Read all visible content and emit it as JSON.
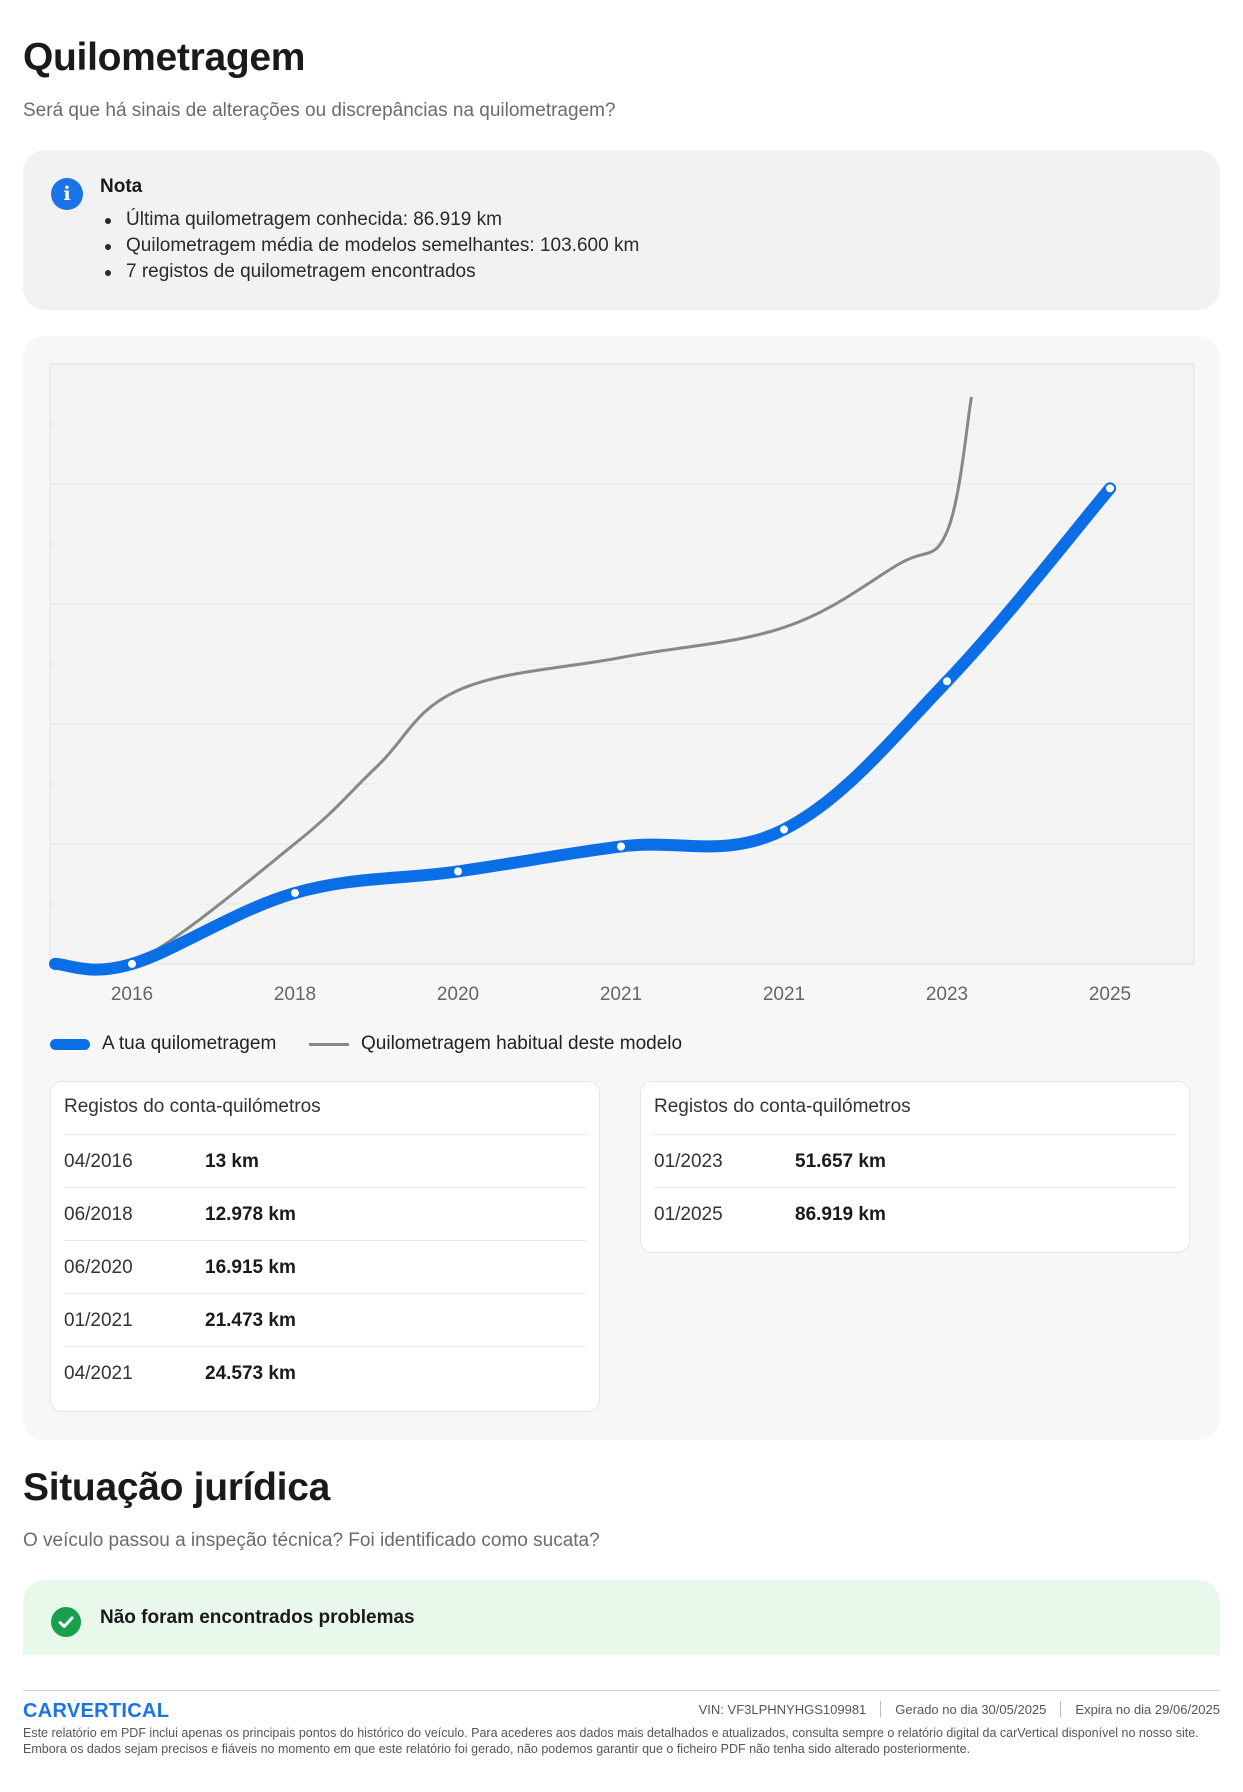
{
  "mileage_section": {
    "title": "Quilometragem",
    "subtitle": "Será que há sinais de alterações ou discrepâncias na quilometragem?"
  },
  "note": {
    "title": "Nota",
    "items": [
      "Última quilometragem conhecida: 86.919 km",
      "Quilometragem média de modelos semelhantes: 103.600 km",
      "7 registos de quilometragem encontrados"
    ]
  },
  "chart_data": {
    "type": "line",
    "title": "",
    "xlabel": "",
    "ylabel": "",
    "categories": [
      "2016",
      "2018",
      "2020",
      "2021",
      "2021",
      "2023",
      "2025"
    ],
    "ylim": [
      0,
      110000
    ],
    "y_gridlines": 10,
    "y_tick_labels_shown": false,
    "series": [
      {
        "name": "A tua quilometragem",
        "color": "#0a6ee6",
        "markers": true,
        "values": [
          13,
          12978,
          16915,
          21473,
          24573,
          51657,
          86919
        ]
      },
      {
        "name": "Quilometragem habitual deste modelo",
        "color": "#888888",
        "markers": false,
        "x": [
          -0.5,
          0,
          1,
          1.5,
          2,
          3,
          4,
          4.7,
          5,
          5.15
        ],
        "values": [
          0,
          0,
          22000,
          36000,
          50000,
          56000,
          61500,
          73000,
          79000,
          103600
        ]
      }
    ]
  },
  "odometer_tables": [
    {
      "title": "Registos do conta-quilómetros",
      "rows": [
        {
          "date": "04/2016",
          "km": "13 km"
        },
        {
          "date": "06/2018",
          "km": "12.978 km"
        },
        {
          "date": "06/2020",
          "km": "16.915 km"
        },
        {
          "date": "01/2021",
          "km": "21.473 km"
        },
        {
          "date": "04/2021",
          "km": "24.573 km"
        }
      ]
    },
    {
      "title": "Registos do conta-quilómetros",
      "rows": [
        {
          "date": "01/2023",
          "km": "51.657 km"
        },
        {
          "date": "01/2025",
          "km": "86.919 km"
        }
      ]
    }
  ],
  "legal_section": {
    "title": "Situação jurídica",
    "subtitle": "O veículo passou a inspeção técnica? Foi identificado como sucata?",
    "status_text": "Não foram encontrados problemas"
  },
  "footer": {
    "logo": "CARVERTICAL",
    "vin_label": "VIN:",
    "vin": "VF3LPHNYHGS109981",
    "generated_label": "Gerado no dia",
    "generated_date": "30/05/2025",
    "expires_label": "Expira no dia",
    "expires_date": "29/06/2025",
    "disclaimer": "Este relatório em PDF inclui apenas os principais pontos do histórico do veículo. Para acederes aos dados mais detalhados e atualizados, consulta sempre o relatório digital da carVertical disponível no nosso site. Embora os dados sejam precisos e fiáveis no momento em que este relatório foi gerado, não podemos garantir que o ficheiro PDF não tenha sido alterado posteriormente."
  },
  "colors": {
    "accent_blue": "#0a6ee6",
    "ok_green": "#18a04a",
    "info_blue": "#1a73e8"
  }
}
